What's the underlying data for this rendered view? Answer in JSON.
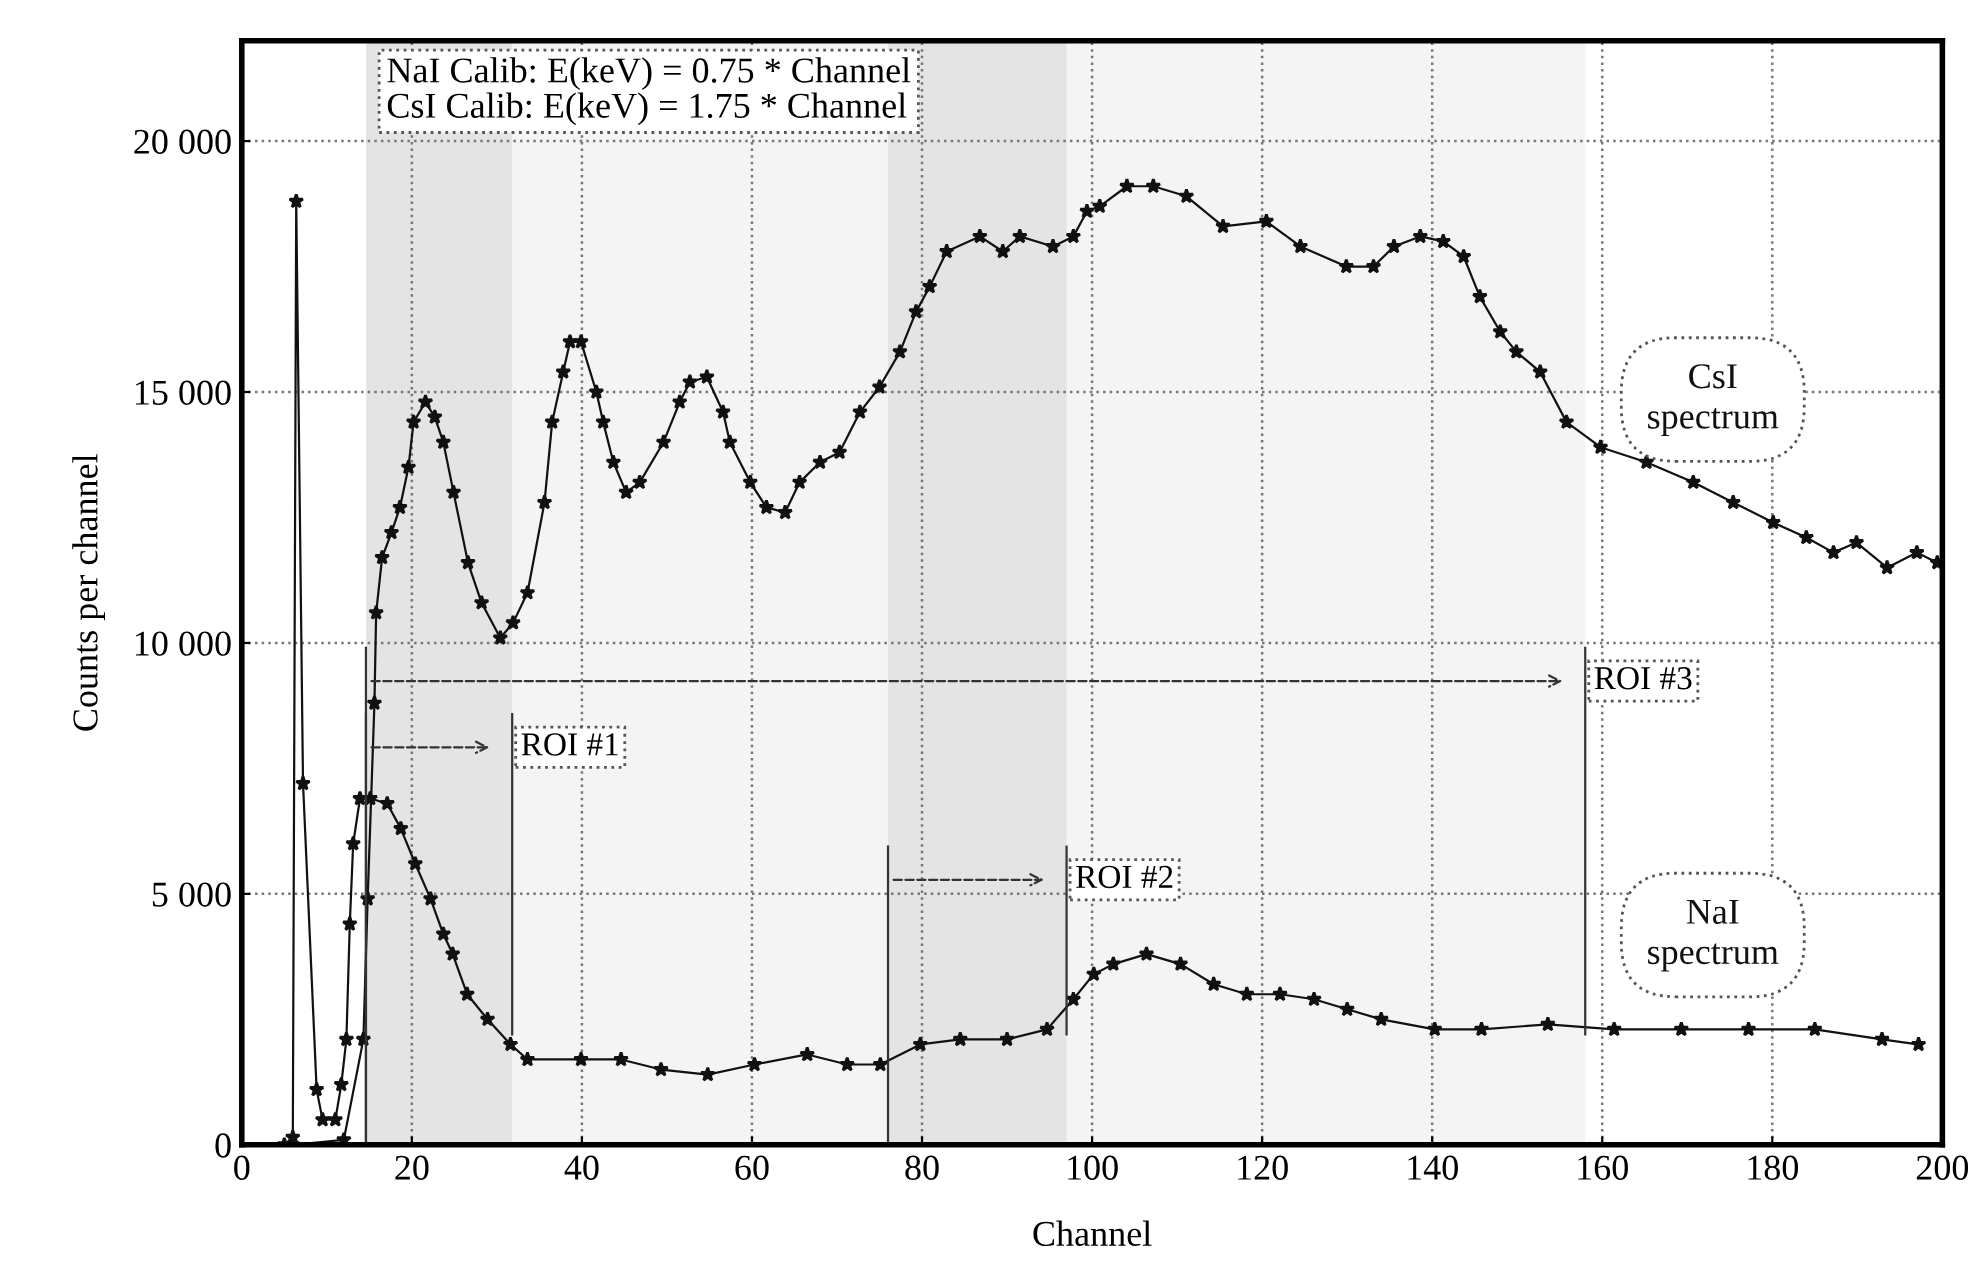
{
  "chart_data": {
    "type": "line",
    "xlabel": "Channel",
    "ylabel": "Counts per channel",
    "xlim": [
      0,
      200
    ],
    "xticks": [
      0,
      20,
      40,
      60,
      80,
      100,
      120,
      140,
      160,
      180,
      200
    ],
    "ylim": [
      0,
      22000
    ],
    "yticks": [
      0,
      {
        "value": 5000,
        "label": "5 000"
      },
      {
        "value": 10000,
        "label": "10 000"
      },
      {
        "value": 15000,
        "label": "15 000"
      },
      {
        "value": 20000,
        "label": "20 000"
      }
    ],
    "grid": true,
    "marker": "star",
    "line_style": "solid",
    "series": [
      {
        "name": "CsI\nspectrum",
        "color": "#111111",
        "x": [
          6,
          12,
          14.3,
          14.8,
          15.6,
          15.8,
          16.5,
          17.6,
          18.6,
          19.6,
          20.2,
          21.6,
          22.7,
          23.7,
          24.9,
          26.6,
          28.2,
          30.4,
          31.9,
          33.6,
          35.6,
          36.5,
          37.8,
          38.6,
          39.9,
          41.7,
          42.5,
          43.7,
          45.2,
          46.8,
          49.6,
          51.5,
          52.7,
          54.7,
          56.6,
          57.4,
          59.8,
          61.7,
          63.9,
          65.6,
          68,
          70.3,
          72.7,
          75,
          77.4,
          79.3,
          80.9,
          82.9,
          86.8,
          89.5,
          91.5,
          95.4,
          97.8,
          99.4,
          100.9,
          104.1,
          107.2,
          111.1,
          115.4,
          120.5,
          124.5,
          129.9,
          133.1,
          135.5,
          138.6,
          141.3,
          143.7,
          145.6,
          148,
          149.9,
          152.7,
          155.8,
          159.8,
          165.2,
          170.7,
          175.4,
          180.1,
          184,
          187.2,
          189.9,
          193.5,
          197,
          199.4
        ],
        "values": [
          0,
          100,
          2100,
          4900,
          8800,
          10600,
          11700,
          12200,
          12700,
          13500,
          14400,
          14800,
          14500,
          14000,
          13000,
          11600,
          10800,
          10100,
          10400,
          11000,
          12800,
          14400,
          15400,
          16000,
          16000,
          15000,
          14400,
          13600,
          13000,
          13200,
          14000,
          14800,
          15200,
          15300,
          14600,
          14000,
          13200,
          12700,
          12600,
          13200,
          13600,
          13800,
          14600,
          15100,
          15800,
          16600,
          17100,
          17800,
          18100,
          17800,
          18100,
          17900,
          18100,
          18600,
          18700,
          19100,
          19100,
          18900,
          18300,
          18400,
          17900,
          17500,
          17500,
          17900,
          18100,
          18000,
          17700,
          16900,
          16200,
          15800,
          15400,
          14400,
          13900,
          13600,
          13200,
          12800,
          12400,
          12100,
          11800,
          12000,
          11500,
          11800,
          11600
        ]
      },
      {
        "name": "NaI\nspectrum",
        "color": "#111111",
        "x": [
          5,
          6,
          6.4,
          7.2,
          8.8,
          9.5,
          11,
          11.7,
          12.3,
          12.7,
          13.1,
          13.9,
          15.1,
          17.1,
          18.7,
          20.4,
          22.2,
          23.7,
          24.8,
          26.5,
          28.9,
          31.6,
          33.6,
          39.9,
          44.6,
          49.3,
          54.8,
          60.3,
          66.5,
          71.2,
          75.1,
          79.8,
          84.5,
          90,
          94.7,
          97.8,
          100.2,
          102.5,
          106.4,
          110.4,
          114.3,
          118.2,
          122.1,
          126.1,
          130,
          134,
          140.3,
          145.8,
          153.6,
          161.4,
          169.3,
          177.2,
          185,
          192.9,
          197.2
        ],
        "values": [
          0,
          150,
          18800,
          7200,
          1100,
          500,
          500,
          1200,
          2100,
          4400,
          6000,
          6900,
          6900,
          6800,
          6300,
          5600,
          4900,
          4200,
          3800,
          3000,
          2500,
          2000,
          1700,
          1700,
          1700,
          1500,
          1400,
          1600,
          1800,
          1600,
          1600,
          2000,
          2100,
          2100,
          2300,
          2900,
          3400,
          3600,
          3800,
          3600,
          3200,
          3000,
          3000,
          2900,
          2700,
          2500,
          2300,
          2300,
          2400,
          2300,
          2300,
          2300,
          2300,
          2100,
          2000
        ]
      }
    ],
    "bands": [
      {
        "axis": "x",
        "from": 14.6,
        "to": 31.8,
        "label": "ROI #1",
        "color": "#e4e4e4"
      },
      {
        "axis": "x",
        "from": 76,
        "to": 97,
        "label": "ROI #2",
        "color": "#e4e4e4"
      },
      {
        "axis": "x",
        "from": 14.6,
        "to": 158,
        "label": "ROI #3",
        "color": "#f4f4f4"
      }
    ],
    "annotations": [
      "NaI Calib: E(keV) = 0.75 * Channel\nCsI Calib: E(keV) = 1.75 * Channel"
    ]
  }
}
